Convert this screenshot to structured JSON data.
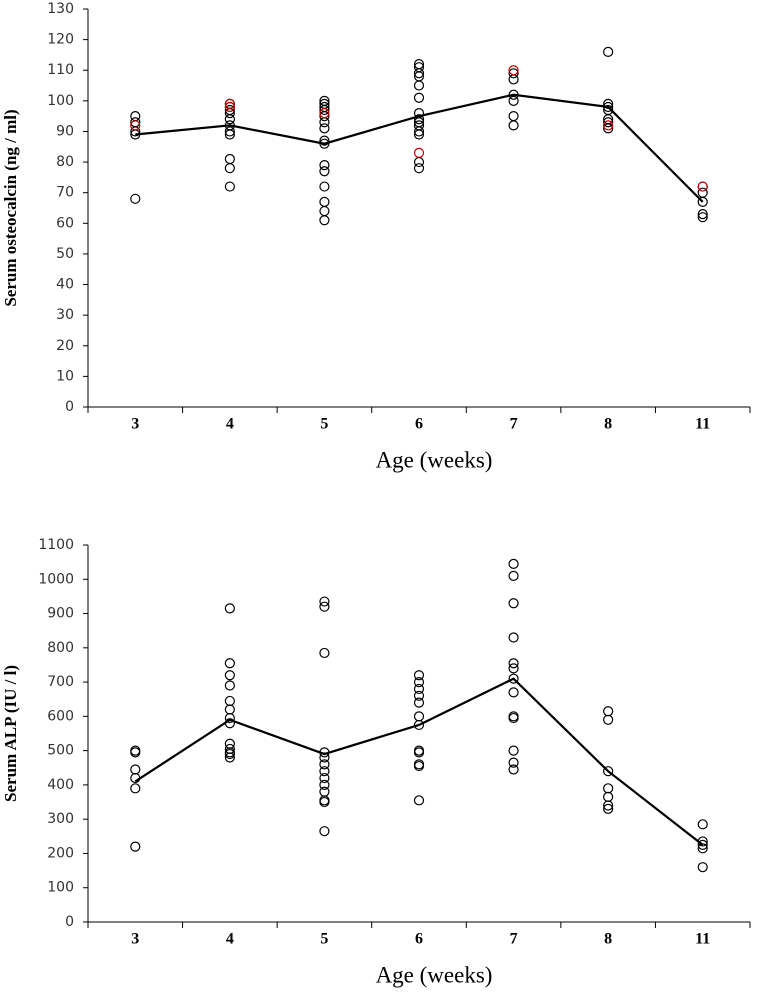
{
  "chart_data": [
    {
      "type": "line",
      "ylabel": "Serum osteocalcin (ng / ml)",
      "xlabel": "Age (weeks)",
      "categories": [
        "3",
        "4",
        "5",
        "6",
        "7",
        "8",
        "11"
      ],
      "ylim": [
        0,
        130
      ],
      "yticks": [
        0,
        10,
        20,
        30,
        40,
        50,
        60,
        70,
        80,
        90,
        100,
        110,
        120,
        130
      ],
      "line": {
        "color": "#000000",
        "values": [
          89,
          92,
          86,
          95,
          102,
          98,
          67
        ]
      },
      "points": [
        {
          "color": "#000000",
          "values": [
            [
              95,
              93,
              90,
              89,
              68
            ],
            [
              99,
              98,
              97,
              96,
              94,
              92,
              90,
              89,
              81,
              78,
              72
            ],
            [
              100,
              99,
              98,
              97,
              95,
              93,
              91,
              87,
              86,
              79,
              77,
              72,
              67,
              64,
              61
            ],
            [
              112,
              111,
              109,
              108,
              105,
              101,
              96,
              94,
              93,
              92,
              90,
              89,
              80,
              78
            ],
            [
              109,
              107,
              102,
              100,
              95,
              92
            ],
            [
              116,
              99,
              98,
              97,
              94,
              93,
              91
            ],
            [
              72,
              70,
              67,
              63,
              62
            ]
          ]
        },
        {
          "color": "#c00000",
          "values": [
            [
              92
            ],
            [
              99,
              98
            ],
            [
              96
            ],
            [
              83
            ],
            [
              110
            ],
            [
              92
            ],
            [
              72
            ]
          ]
        }
      ]
    },
    {
      "type": "line",
      "ylabel": "Serum ALP  (IU / l)",
      "xlabel": "Age (weeks)",
      "categories": [
        "3",
        "4",
        "5",
        "6",
        "7",
        "8",
        "11"
      ],
      "ylim": [
        0,
        1100
      ],
      "yticks": [
        0,
        100,
        200,
        300,
        400,
        500,
        600,
        700,
        800,
        900,
        1000,
        1100
      ],
      "line": {
        "color": "#000000",
        "values": [
          410,
          590,
          490,
          575,
          710,
          440,
          225
        ]
      },
      "points": [
        {
          "color": "#000000",
          "values": [
            [
              500,
              495,
              445,
              420,
              390,
              220
            ],
            [
              915,
              755,
              720,
              690,
              645,
              620,
              595,
              580,
              520,
              505,
              495,
              490,
              480
            ],
            [
              935,
              920,
              785,
              495,
              480,
              460,
              440,
              420,
              400,
              380,
              355,
              350,
              265
            ],
            [
              720,
              700,
              680,
              660,
              640,
              600,
              575,
              500,
              495,
              460,
              455,
              355
            ],
            [
              1045,
              1010,
              930,
              830,
              755,
              740,
              710,
              670,
              600,
              595,
              500,
              465,
              445
            ],
            [
              615,
              590,
              440,
              390,
              365,
              340,
              330
            ],
            [
              285,
              235,
              225,
              215,
              160
            ]
          ]
        }
      ]
    }
  ]
}
